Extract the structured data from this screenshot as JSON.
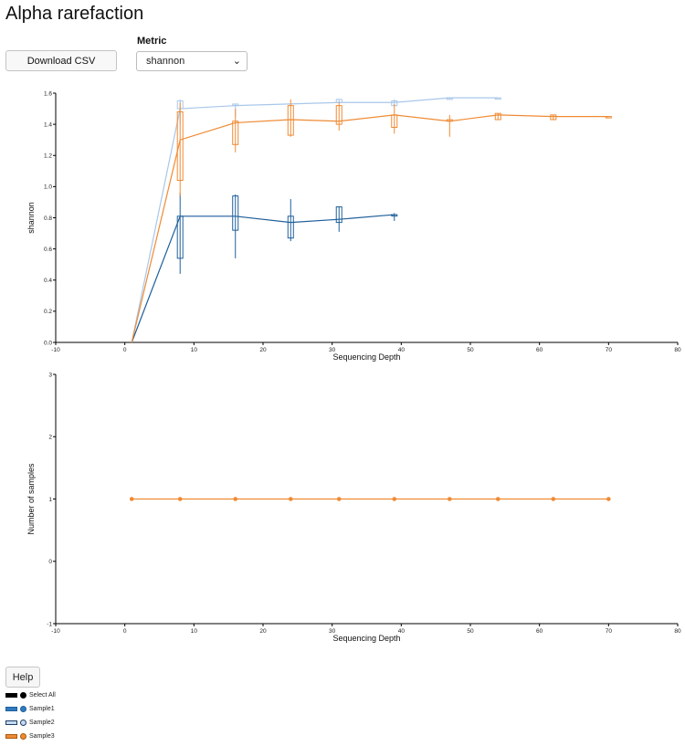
{
  "header": {
    "title": "Alpha rarefaction"
  },
  "controls": {
    "download_label": "Download CSV",
    "metric_label": "Metric",
    "metric_value": "shannon",
    "help_label": "Help"
  },
  "legend": {
    "select_all": "Select All",
    "items": [
      {
        "name": "Sample1",
        "color": "#1f5f9b",
        "fill": "#1f6fb4"
      },
      {
        "name": "Sample2",
        "color": "#a9c7ea",
        "fill": "#c6daf1"
      },
      {
        "name": "Sample3",
        "color": "#ef8a33",
        "fill": "#ef8a33"
      }
    ]
  },
  "chart_data": [
    {
      "type": "line",
      "xlabel": "Sequencing Depth",
      "ylabel": "shannon",
      "xlim": [
        -10,
        80
      ],
      "ylim": [
        0,
        1.6
      ],
      "x_ticks": [
        -10,
        0,
        10,
        20,
        30,
        40,
        50,
        60,
        70,
        80
      ],
      "y_ticks": [
        0.0,
        0.2,
        0.4,
        0.6,
        0.8,
        1.0,
        1.2,
        1.4,
        1.6
      ],
      "series": [
        {
          "name": "Sample1",
          "color": "#1f5f9b",
          "x": [
            1,
            8,
            16,
            24,
            31,
            39
          ],
          "median": [
            0,
            0.81,
            0.81,
            0.77,
            0.79,
            0.82
          ],
          "q1": [
            0,
            0.54,
            0.72,
            0.67,
            0.77,
            0.82
          ],
          "q3": [
            0,
            0.81,
            0.94,
            0.81,
            0.87,
            0.82
          ],
          "min": [
            0,
            0.44,
            0.54,
            0.65,
            0.71,
            0.78
          ],
          "max": [
            0,
            0.96,
            0.95,
            0.92,
            0.87,
            0.83
          ]
        },
        {
          "name": "Sample2",
          "color": "#a9c7ea",
          "x": [
            1,
            8,
            16,
            31,
            39,
            47,
            54
          ],
          "median": [
            0,
            1.5,
            1.52,
            1.54,
            1.54,
            1.57,
            1.57
          ],
          "q1": [
            0,
            1.5,
            1.52,
            1.54,
            1.52,
            1.56,
            1.57
          ],
          "q3": [
            0,
            1.55,
            1.53,
            1.56,
            1.55,
            1.57,
            1.57
          ],
          "min": [
            0,
            1.4,
            1.45,
            1.54,
            1.52,
            1.56,
            1.57
          ],
          "max": [
            0,
            1.56,
            1.53,
            1.56,
            1.56,
            1.57,
            1.57
          ]
        },
        {
          "name": "Sample3",
          "color": "#ef8a33",
          "x": [
            1,
            8,
            16,
            24,
            31,
            39,
            47,
            54,
            62,
            70
          ],
          "median": [
            0,
            1.3,
            1.41,
            1.43,
            1.42,
            1.46,
            1.42,
            1.46,
            1.45,
            1.45
          ],
          "q1": [
            0,
            1.04,
            1.27,
            1.33,
            1.4,
            1.38,
            1.42,
            1.43,
            1.43,
            1.45
          ],
          "q3": [
            0,
            1.48,
            1.42,
            1.52,
            1.52,
            1.46,
            1.43,
            1.47,
            1.46,
            1.45
          ],
          "min": [
            0,
            0.94,
            1.22,
            1.32,
            1.36,
            1.34,
            1.32,
            1.43,
            1.43,
            1.45
          ],
          "max": [
            0,
            1.54,
            1.5,
            1.56,
            1.54,
            1.53,
            1.46,
            1.47,
            1.46,
            1.45
          ]
        }
      ]
    },
    {
      "type": "line",
      "xlabel": "Sequencing Depth",
      "ylabel": "Number of samples",
      "xlim": [
        -10,
        80
      ],
      "ylim": [
        -1,
        3
      ],
      "x_ticks": [
        -10,
        0,
        10,
        20,
        30,
        40,
        50,
        60,
        70,
        80
      ],
      "y_ticks": [
        -1,
        0,
        1,
        2,
        3
      ],
      "series": [
        {
          "name": "Sample3",
          "color": "#ef8a33",
          "x": [
            1,
            8,
            16,
            24,
            31,
            39,
            47,
            54,
            62,
            70
          ],
          "y": [
            1,
            1,
            1,
            1,
            1,
            1,
            1,
            1,
            1,
            1
          ]
        }
      ]
    }
  ]
}
